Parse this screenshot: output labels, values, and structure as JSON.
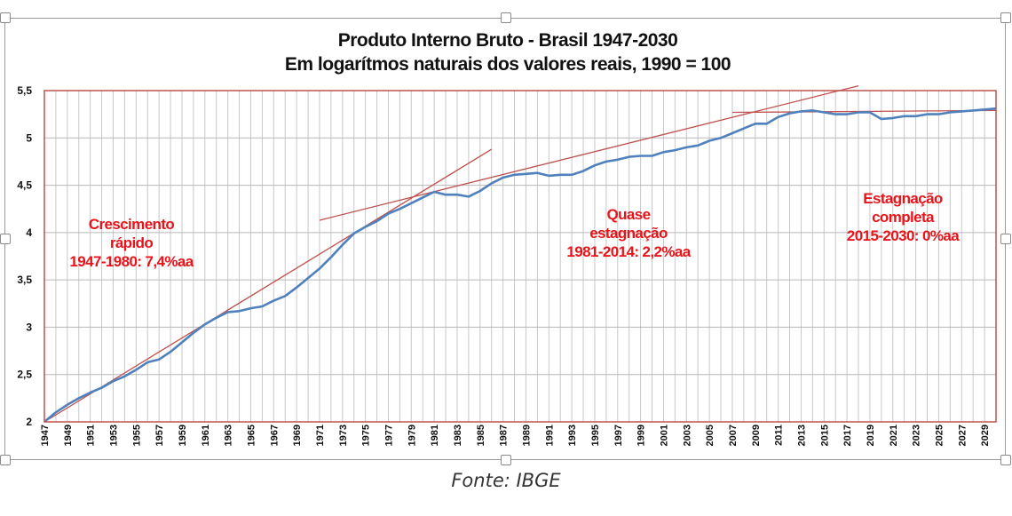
{
  "chart_data": {
    "type": "line",
    "title": "Produto Interno Bruto - Brasil 1947-2030",
    "subtitle": "Em logarítmos naturais dos valores reais, 1990 = 100",
    "xlim": [
      1947,
      2030
    ],
    "ylim": [
      2,
      5.5
    ],
    "y_ticks": [
      "2",
      "2,5",
      "3",
      "3,5",
      "4",
      "4,5",
      "5",
      "5,5"
    ],
    "y_tick_values": [
      2,
      2.5,
      3,
      3.5,
      4,
      4.5,
      5,
      5.5
    ],
    "x_ticks": [
      "1947",
      "1949",
      "1951",
      "1953",
      "1955",
      "1957",
      "1959",
      "1961",
      "1963",
      "1965",
      "1967",
      "1969",
      "1971",
      "1973",
      "1975",
      "1977",
      "1979",
      "1981",
      "1983",
      "1985",
      "1987",
      "1989",
      "1991",
      "1993",
      "1995",
      "1997",
      "1999",
      "2001",
      "2003",
      "2005",
      "2007",
      "2009",
      "2011",
      "2013",
      "2015",
      "2017",
      "2019",
      "2021",
      "2023",
      "2025",
      "2027",
      "2029"
    ],
    "grid": true,
    "series": [
      {
        "x": [
          1947,
          1948,
          1949,
          1950,
          1951,
          1952,
          1953,
          1954,
          1955,
          1956,
          1957,
          1958,
          1959,
          1960,
          1961,
          1962,
          1963,
          1964,
          1965,
          1966,
          1967,
          1968,
          1969,
          1970,
          1971,
          1972,
          1973,
          1974,
          1975,
          1976,
          1977,
          1978,
          1979,
          1980,
          1981,
          1982,
          1983,
          1984,
          1985,
          1986,
          1987,
          1988,
          1989,
          1990,
          1991,
          1992,
          1993,
          1994,
          1995,
          1996,
          1997,
          1998,
          1999,
          2000,
          2001,
          2002,
          2003,
          2004,
          2005,
          2006,
          2007,
          2008,
          2009,
          2010,
          2011,
          2012,
          2013,
          2014,
          2015,
          2016,
          2017,
          2018,
          2019,
          2020,
          2021,
          2022,
          2023,
          2024,
          2025,
          2026,
          2027,
          2028,
          2029,
          2030
        ],
        "values": [
          2.0,
          2.1,
          2.18,
          2.25,
          2.31,
          2.36,
          2.43,
          2.48,
          2.55,
          2.63,
          2.66,
          2.74,
          2.84,
          2.94,
          3.03,
          3.1,
          3.16,
          3.17,
          3.2,
          3.22,
          3.28,
          3.33,
          3.42,
          3.52,
          3.62,
          3.74,
          3.87,
          3.99,
          4.06,
          4.12,
          4.2,
          4.25,
          4.31,
          4.37,
          4.43,
          4.4,
          4.4,
          4.38,
          4.44,
          4.52,
          4.58,
          4.61,
          4.62,
          4.63,
          4.6,
          4.61,
          4.61,
          4.65,
          4.71,
          4.75,
          4.77,
          4.8,
          4.81,
          4.81,
          4.85,
          4.87,
          4.9,
          4.92,
          4.97,
          5.0,
          5.05,
          5.1,
          5.15,
          5.15,
          5.22,
          5.26,
          5.28,
          5.29,
          5.27,
          5.25,
          5.25,
          5.27,
          5.27,
          5.2,
          5.21,
          5.23,
          5.23,
          5.25,
          5.25,
          5.27,
          5.28,
          5.29,
          5.3,
          5.31
        ]
      }
    ],
    "trend_lines": [
      {
        "x": [
          1947,
          1986
        ],
        "values": [
          2.0,
          4.88
        ]
      },
      {
        "x": [
          1971,
          2018
        ],
        "values": [
          4.13,
          5.55
        ]
      },
      {
        "x": [
          2007,
          2030
        ],
        "values": [
          5.27,
          5.29
        ]
      }
    ],
    "annotations": [
      {
        "lines": [
          "Crescimento",
          "rápido",
          "1947-1980: 7,4%aa"
        ]
      },
      {
        "lines": [
          "Quase",
          "estagnação",
          "1981-2014: 2,2%aa"
        ]
      },
      {
        "lines": [
          "Estagnação",
          "completa",
          "2015-2030: 0%aa"
        ]
      }
    ],
    "colors": {
      "series": "#4f81bd",
      "trend": "#c0504d",
      "annotation": "#e8141a",
      "plot_border": "#c0504d",
      "grid": "#c8c8c8"
    }
  },
  "source": "Fonte: IBGE"
}
